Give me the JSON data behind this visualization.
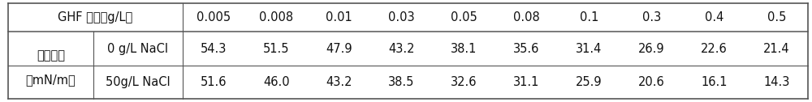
{
  "header_col1": "GHF 浓度（g/L）",
  "concentrations": [
    "0.005",
    "0.008",
    "0.01",
    "0.03",
    "0.05",
    "0.08",
    "0.1",
    "0.3",
    "0.4",
    "0.5"
  ],
  "row_label_main": "表面张力",
  "row_label_unit": "（mN/m）",
  "row1_label": "0 g/L NaCl",
  "row2_label": "50g/L NaCl",
  "row1_values": [
    "54.3",
    "51.5",
    "47.9",
    "43.2",
    "38.1",
    "35.6",
    "31.4",
    "26.9",
    "22.6",
    "21.4"
  ],
  "row2_values": [
    "51.6",
    "46.0",
    "43.2",
    "38.5",
    "32.6",
    "31.1",
    "25.9",
    "20.6",
    "16.1",
    "14.3"
  ],
  "line_color": "#555555",
  "font_color": "#111111",
  "font_size": 10.5
}
